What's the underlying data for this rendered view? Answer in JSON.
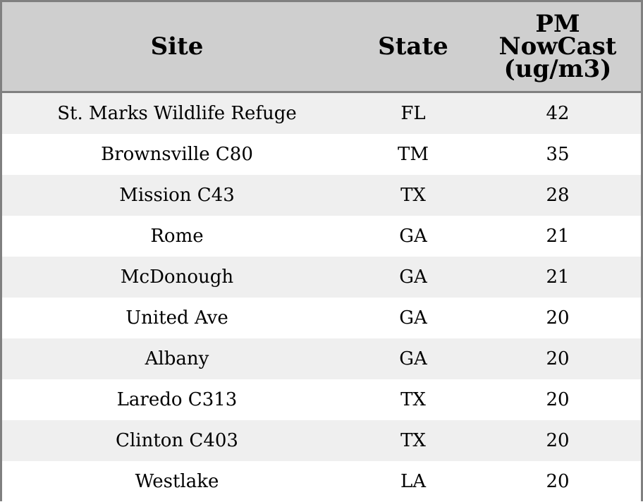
{
  "table": {
    "headers": {
      "site": "Site",
      "state": "State",
      "pm_line1": "PM",
      "pm_line2": "NowCast",
      "pm_line3": "(ug/m3)"
    },
    "rows": [
      {
        "site": "St. Marks Wildlife Refuge",
        "state": "FL",
        "pm": "42"
      },
      {
        "site": "Brownsville C80",
        "state": "TM",
        "pm": "35"
      },
      {
        "site": "Mission C43",
        "state": "TX",
        "pm": "28"
      },
      {
        "site": "Rome",
        "state": "GA",
        "pm": "21"
      },
      {
        "site": "McDonough",
        "state": "GA",
        "pm": "21"
      },
      {
        "site": "United Ave",
        "state": "GA",
        "pm": "20"
      },
      {
        "site": "Albany",
        "state": "GA",
        "pm": "20"
      },
      {
        "site": "Laredo C313",
        "state": "TX",
        "pm": "20"
      },
      {
        "site": "Clinton C403",
        "state": "TX",
        "pm": "20"
      },
      {
        "site": "Westlake",
        "state": "LA",
        "pm": "20"
      }
    ]
  }
}
